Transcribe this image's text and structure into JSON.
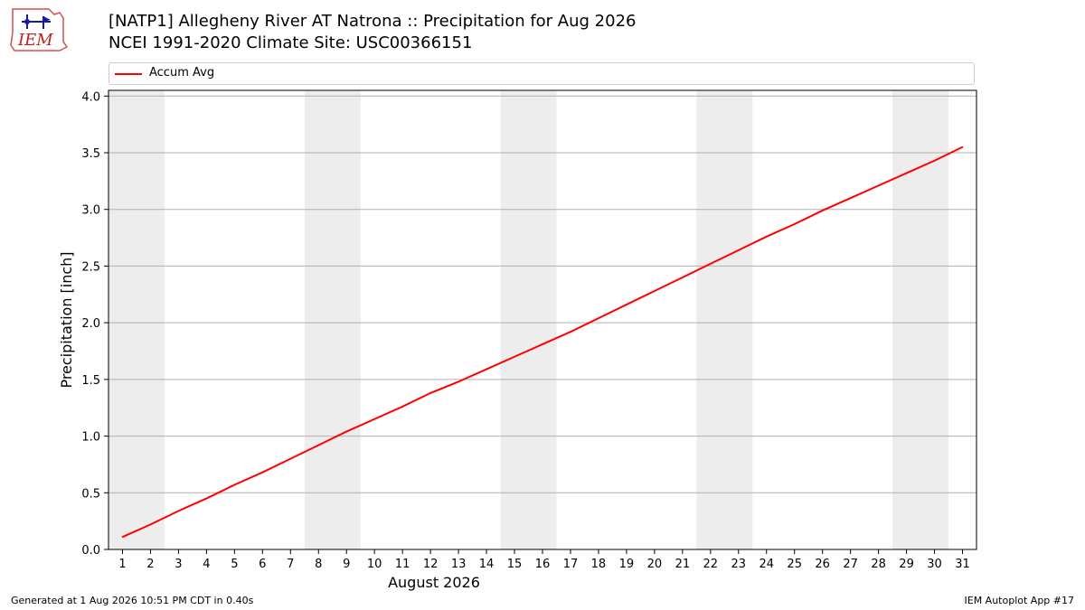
{
  "header": {
    "title_line1": "[NATP1] Allegheny River  AT Natrona :: Precipitation for Aug 2026",
    "title_line2": "NCEI 1991-2020 Climate Site: USC00366151",
    "logo_text": "IEM"
  },
  "legend": {
    "entries": [
      {
        "label": "Accum Avg",
        "color": "#ff0000"
      }
    ],
    "placement": "top"
  },
  "footer": {
    "left": "Generated at 1 Aug 2026 10:51 PM CDT in 0.40s",
    "right": "IEM Autoplot App #17"
  },
  "chart_data": {
    "type": "line",
    "xlabel": "August 2026",
    "ylabel": "Precipitation [inch]",
    "ylim": [
      0,
      4.05
    ],
    "xlim": [
      0.5,
      31.5
    ],
    "y_ticks": [
      "0.0",
      "0.5",
      "1.0",
      "1.5",
      "2.0",
      "2.5",
      "3.0",
      "3.5",
      "4.0"
    ],
    "x_ticks": [
      "1",
      "2",
      "3",
      "4",
      "5",
      "6",
      "7",
      "8",
      "9",
      "10",
      "11",
      "12",
      "13",
      "14",
      "15",
      "16",
      "17",
      "18",
      "19",
      "20",
      "21",
      "22",
      "23",
      "24",
      "25",
      "26",
      "27",
      "28",
      "29",
      "30",
      "31"
    ],
    "grid": "horizontal",
    "weekend_shading_days": [
      [
        1,
        2
      ],
      [
        8,
        9
      ],
      [
        15,
        16
      ],
      [
        22,
        23
      ],
      [
        29,
        30
      ]
    ],
    "series": [
      {
        "name": "Accum Avg",
        "color": "#ff0000",
        "x": [
          1,
          2,
          3,
          4,
          5,
          6,
          7,
          8,
          9,
          10,
          11,
          12,
          13,
          14,
          15,
          16,
          17,
          18,
          19,
          20,
          21,
          22,
          23,
          24,
          25,
          26,
          27,
          28,
          29,
          30,
          31
        ],
        "values": [
          0.11,
          0.22,
          0.34,
          0.45,
          0.57,
          0.68,
          0.8,
          0.92,
          1.04,
          1.15,
          1.26,
          1.38,
          1.48,
          1.59,
          1.7,
          1.81,
          1.92,
          2.04,
          2.16,
          2.28,
          2.4,
          2.52,
          2.64,
          2.76,
          2.87,
          2.99,
          3.1,
          3.21,
          3.32,
          3.43,
          3.55
        ]
      }
    ]
  }
}
